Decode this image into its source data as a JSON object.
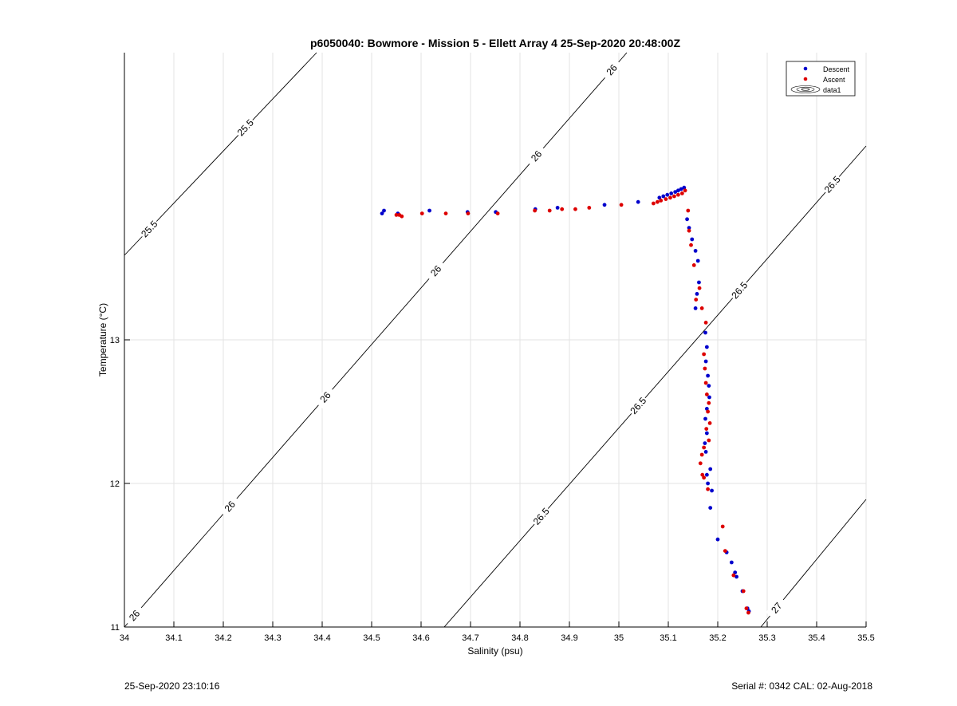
{
  "chart_data": {
    "type": "scatter",
    "title": "p6050040: Bowmore - Mission 5 - Ellett Array 4 25-Sep-2020 20:48:00Z",
    "xlabel": "Salinity (psu)",
    "ylabel": "Temperature (°C)",
    "xlim": [
      34,
      35.5
    ],
    "ylim": [
      11,
      15
    ],
    "xticks": [
      "34",
      "34.1",
      "34.2",
      "34.3",
      "34.4",
      "34.5",
      "34.6",
      "34.7",
      "34.8",
      "34.9",
      "35",
      "35.1",
      "35.2",
      "35.3",
      "35.4",
      "35.5"
    ],
    "yticks": [
      "11",
      "12",
      "13"
    ],
    "grid": true,
    "legend_position": "top-right",
    "legend": [
      "Descent",
      "Ascent",
      "data1"
    ],
    "colors": {
      "descent": "#0000cc",
      "ascent": "#dd0000",
      "contour": "#000000",
      "grid": "#e3e3e3"
    },
    "contours": [
      {
        "level": "25.5",
        "labels": [
          "25.5",
          "25.5"
        ]
      },
      {
        "level": "26",
        "labels": [
          "26",
          "26",
          "26",
          "26",
          "26",
          "26"
        ]
      },
      {
        "level": "26.5",
        "labels": [
          "26.5",
          "26.5",
          "26.5",
          "26.5"
        ]
      },
      {
        "level": "27",
        "labels": [
          "27"
        ]
      }
    ],
    "series": [
      {
        "name": "Descent",
        "points": [
          [
            34.521,
            13.88
          ],
          [
            34.525,
            13.9
          ],
          [
            34.553,
            13.88
          ],
          [
            34.617,
            13.9
          ],
          [
            34.694,
            13.89
          ],
          [
            34.751,
            13.89
          ],
          [
            34.831,
            13.91
          ],
          [
            34.876,
            13.92
          ],
          [
            34.971,
            13.94
          ],
          [
            35.039,
            13.96
          ],
          [
            35.082,
            13.99
          ],
          [
            35.09,
            14.0
          ],
          [
            35.098,
            14.01
          ],
          [
            35.106,
            14.02
          ],
          [
            35.114,
            14.03
          ],
          [
            35.12,
            14.04
          ],
          [
            35.126,
            14.05
          ],
          [
            35.132,
            14.06
          ],
          [
            35.138,
            13.84
          ],
          [
            35.142,
            13.78
          ],
          [
            35.148,
            13.7
          ],
          [
            35.155,
            13.62
          ],
          [
            35.16,
            13.55
          ],
          [
            35.162,
            13.4
          ],
          [
            35.158,
            13.32
          ],
          [
            35.155,
            13.22
          ],
          [
            35.175,
            13.05
          ],
          [
            35.178,
            12.95
          ],
          [
            35.176,
            12.85
          ],
          [
            35.18,
            12.75
          ],
          [
            35.182,
            12.68
          ],
          [
            35.183,
            12.6
          ],
          [
            35.178,
            12.52
          ],
          [
            35.175,
            12.45
          ],
          [
            35.178,
            12.35
          ],
          [
            35.174,
            12.28
          ],
          [
            35.176,
            12.22
          ],
          [
            35.185,
            12.1
          ],
          [
            35.178,
            12.06
          ],
          [
            35.18,
            12.0
          ],
          [
            35.188,
            11.95
          ],
          [
            35.185,
            11.83
          ],
          [
            35.2,
            11.61
          ],
          [
            35.218,
            11.52
          ],
          [
            35.228,
            11.45
          ],
          [
            35.235,
            11.38
          ],
          [
            35.238,
            11.35
          ],
          [
            35.25,
            11.25
          ],
          [
            35.26,
            11.13
          ],
          [
            35.263,
            11.11
          ]
        ]
      },
      {
        "name": "Ascent",
        "points": [
          [
            34.55,
            13.87
          ],
          [
            34.556,
            13.87
          ],
          [
            34.561,
            13.86
          ],
          [
            34.602,
            13.88
          ],
          [
            34.65,
            13.88
          ],
          [
            34.695,
            13.88
          ],
          [
            34.755,
            13.88
          ],
          [
            34.83,
            13.9
          ],
          [
            34.86,
            13.9
          ],
          [
            34.885,
            13.91
          ],
          [
            34.912,
            13.91
          ],
          [
            34.94,
            13.92
          ],
          [
            35.005,
            13.94
          ],
          [
            35.07,
            13.95
          ],
          [
            35.078,
            13.96
          ],
          [
            35.085,
            13.97
          ],
          [
            35.095,
            13.98
          ],
          [
            35.104,
            13.99
          ],
          [
            35.112,
            14.0
          ],
          [
            35.12,
            14.01
          ],
          [
            35.128,
            14.02
          ],
          [
            35.134,
            14.04
          ],
          [
            35.14,
            13.9
          ],
          [
            35.142,
            13.76
          ],
          [
            35.146,
            13.66
          ],
          [
            35.152,
            13.52
          ],
          [
            35.163,
            13.36
          ],
          [
            35.156,
            13.28
          ],
          [
            35.168,
            13.22
          ],
          [
            35.176,
            13.12
          ],
          [
            35.172,
            12.9
          ],
          [
            35.174,
            12.8
          ],
          [
            35.176,
            12.7
          ],
          [
            35.178,
            12.62
          ],
          [
            35.182,
            12.56
          ],
          [
            35.18,
            12.5
          ],
          [
            35.184,
            12.42
          ],
          [
            35.177,
            12.38
          ],
          [
            35.182,
            12.3
          ],
          [
            35.172,
            12.25
          ],
          [
            35.168,
            12.2
          ],
          [
            35.165,
            12.14
          ],
          [
            35.169,
            12.06
          ],
          [
            35.172,
            12.04
          ],
          [
            35.18,
            11.96
          ],
          [
            35.21,
            11.7
          ],
          [
            35.215,
            11.53
          ],
          [
            35.232,
            11.36
          ],
          [
            35.252,
            11.25
          ],
          [
            35.258,
            11.13
          ],
          [
            35.262,
            11.1
          ]
        ]
      }
    ]
  },
  "footer": {
    "left": "25-Sep-2020 23:10:16",
    "right": "Serial #: 0342  CAL: 02-Aug-2018"
  }
}
